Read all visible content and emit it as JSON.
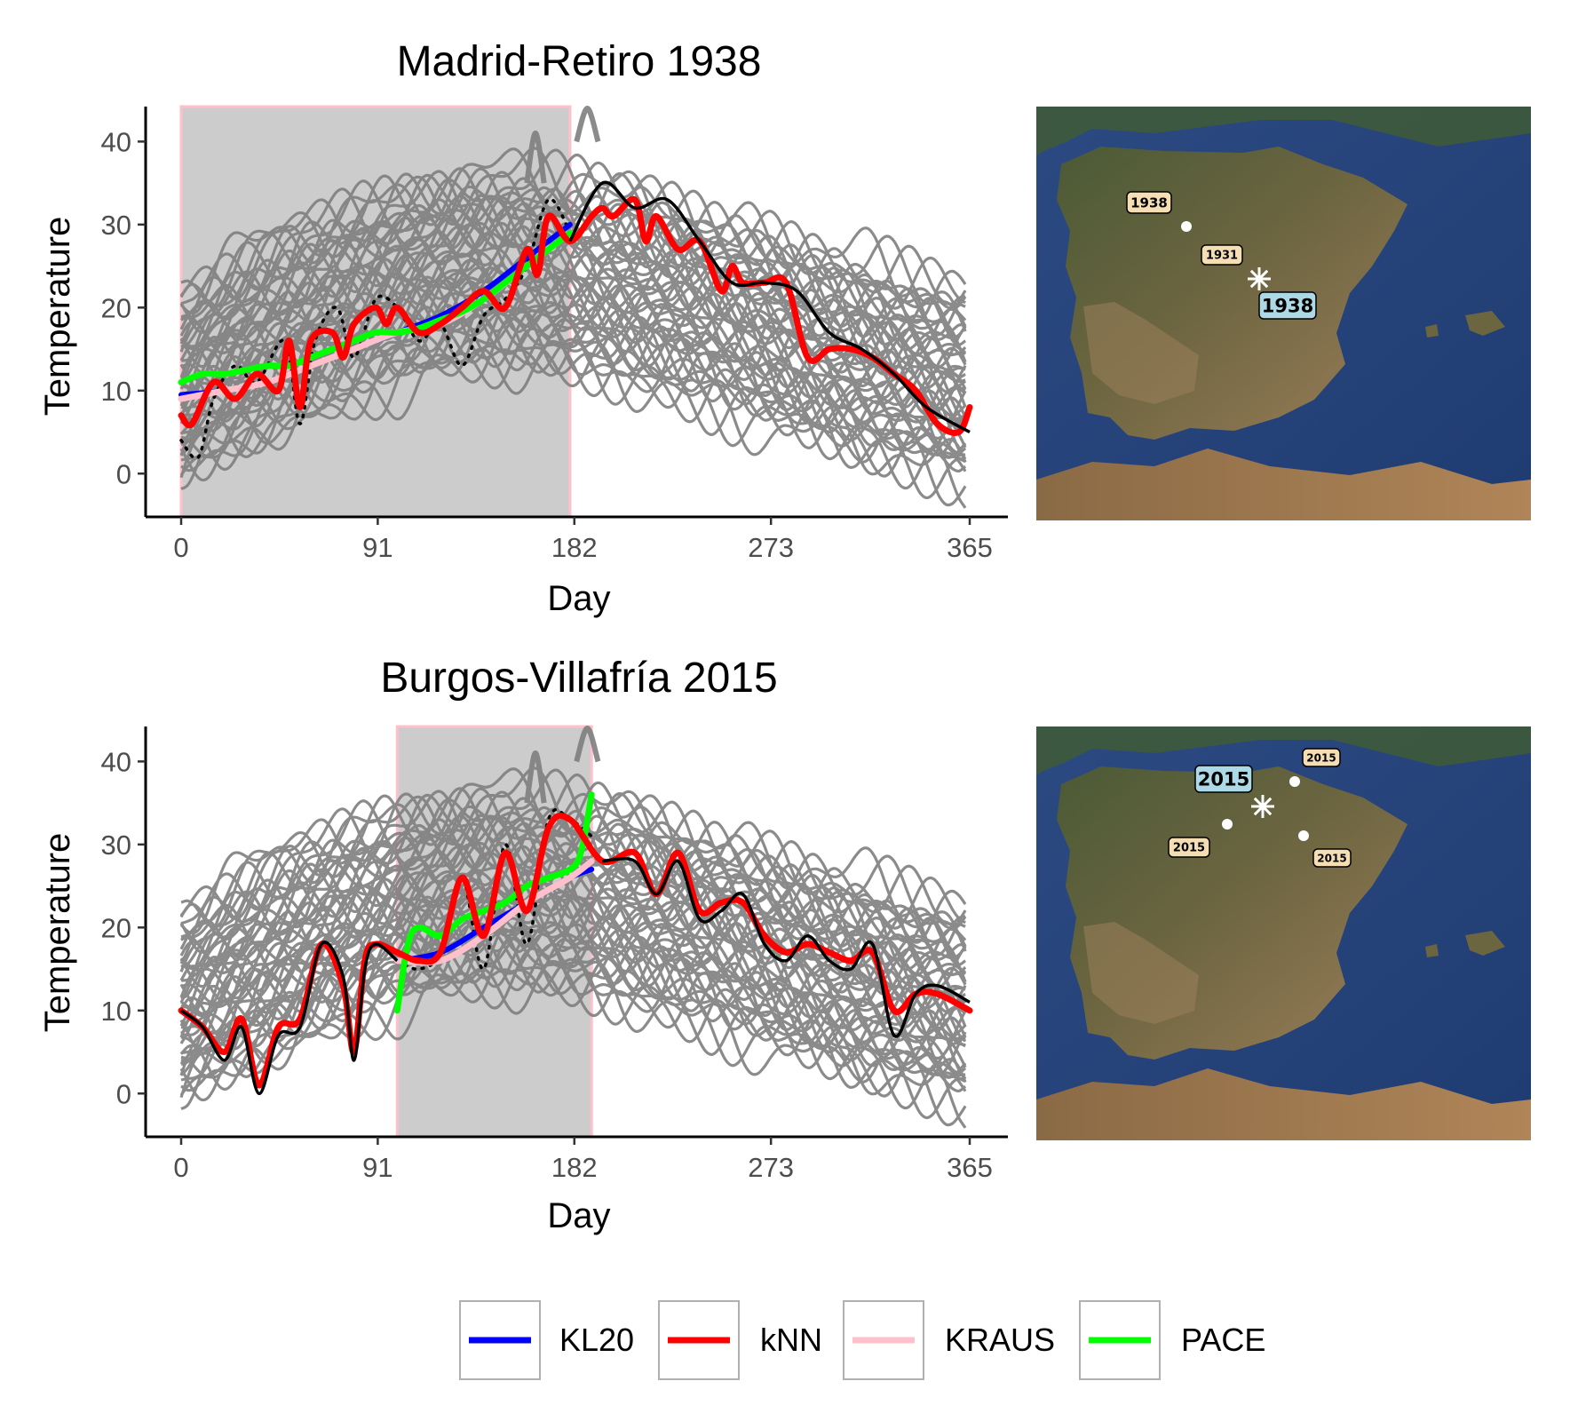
{
  "chart_data": [
    {
      "type": "line",
      "title": "Madrid-Retiro 1938",
      "xlabel": "Day",
      "ylabel": "Temperature",
      "xlim": [
        0,
        365
      ],
      "ylim": [
        -5,
        44
      ],
      "xticks": [
        0,
        91,
        182,
        273,
        365
      ],
      "yticks": [
        0,
        10,
        20,
        30,
        40
      ],
      "shaded_interval": [
        0,
        180
      ],
      "background_curves": "gray functional sample of daily temperature curves (all stations/years)",
      "observed_line": {
        "name": "observed",
        "x": [
          0,
          15,
          30,
          45,
          60,
          75,
          90,
          105,
          120,
          135,
          150,
          165,
          180,
          195,
          210,
          225,
          240,
          255,
          270,
          285,
          300,
          315,
          330,
          345,
          365
        ],
        "y": [
          8,
          9,
          11,
          12,
          15,
          16,
          18,
          18,
          19,
          20,
          22,
          25,
          28,
          35,
          32,
          33,
          28,
          23,
          23,
          22,
          17,
          15,
          12,
          8,
          5
        ]
      },
      "observed_dotted": {
        "name": "hidden observed",
        "x": [
          0,
          8,
          15,
          25,
          35,
          48,
          55,
          62,
          72,
          80,
          90,
          100,
          110,
          120,
          130,
          140,
          150,
          160,
          170,
          180
        ],
        "y": [
          4,
          2,
          9,
          13,
          11,
          16,
          6,
          16,
          20,
          14,
          21,
          20,
          16,
          18,
          13,
          19,
          21,
          25,
          33,
          29
        ]
      },
      "series": [
        {
          "name": "KL20",
          "color": "#0000ff",
          "x": [
            0,
            20,
            40,
            60,
            80,
            100,
            120,
            140,
            160,
            180
          ],
          "y": [
            9.5,
            10,
            11,
            13,
            15,
            17,
            19,
            22,
            26,
            30
          ]
        },
        {
          "name": "kNN",
          "color": "#ff0000",
          "x": [
            0,
            5,
            15,
            25,
            35,
            45,
            50,
            55,
            60,
            70,
            75,
            80,
            90,
            95,
            100,
            110,
            120,
            130,
            140,
            150,
            160,
            165,
            170,
            180,
            190,
            195,
            200,
            210,
            215,
            220,
            230,
            240,
            250,
            255,
            260,
            270,
            280,
            290,
            300,
            310,
            320,
            330,
            340,
            350,
            360,
            365
          ],
          "y": [
            7,
            6,
            11,
            9,
            12,
            10,
            16,
            8,
            16,
            17,
            14,
            18,
            20,
            18,
            20,
            17,
            18,
            20,
            22,
            20,
            27,
            24,
            31,
            28,
            31,
            32,
            31,
            33,
            28,
            31,
            27,
            28,
            22,
            25,
            23,
            23,
            23,
            14,
            15,
            15,
            14,
            12,
            10,
            6,
            5,
            8
          ]
        },
        {
          "name": "KRAUS",
          "color": "#ffc0cb",
          "x": [
            0,
            20,
            40,
            60,
            80,
            100,
            120,
            140,
            160,
            180
          ],
          "y": [
            9,
            10,
            11,
            13,
            15,
            17,
            18,
            21,
            25,
            29
          ]
        },
        {
          "name": "PACE",
          "color": "#00ff00",
          "x": [
            0,
            10,
            20,
            30,
            40,
            50,
            60,
            70,
            80,
            90,
            100,
            110,
            120,
            130,
            140,
            150,
            160,
            170,
            180
          ],
          "y": [
            11,
            12,
            12,
            12.5,
            13,
            13,
            14,
            15,
            16,
            17,
            17,
            17.5,
            18.5,
            19.5,
            21,
            23,
            25,
            27,
            29
          ]
        }
      ],
      "map": {
        "labels": [
          {
            "text": "1938",
            "style": "tan"
          },
          {
            "text": "1931",
            "style": "tan"
          },
          {
            "text": "1938",
            "style": "blue"
          }
        ]
      }
    },
    {
      "type": "line",
      "title": "Burgos-Villafría 2015",
      "xlabel": "Day",
      "ylabel": "Temperature",
      "xlim": [
        0,
        365
      ],
      "ylim": [
        -5,
        44
      ],
      "xticks": [
        0,
        91,
        182,
        273,
        365
      ],
      "yticks": [
        0,
        10,
        20,
        30,
        40
      ],
      "shaded_interval": [
        100,
        190
      ],
      "background_curves": "gray functional sample of daily temperature curves (all stations/years)",
      "observed_line": {
        "name": "observed",
        "x": [
          0,
          10,
          20,
          28,
          36,
          45,
          55,
          65,
          75,
          80,
          85,
          90,
          100,
          110,
          120,
          130,
          140,
          150,
          160,
          170,
          180,
          195,
          210,
          220,
          230,
          240,
          250,
          260,
          270,
          280,
          290,
          300,
          310,
          320,
          330,
          340,
          350,
          365
        ],
        "y": [
          10,
          8,
          4,
          8,
          0,
          7,
          8,
          18,
          14,
          4,
          15,
          18,
          16,
          16,
          18,
          26,
          18,
          29,
          20,
          31,
          32,
          28,
          28,
          24,
          28,
          21,
          22,
          24,
          18,
          16,
          19,
          16,
          15,
          18,
          7,
          12,
          13,
          11
        ]
      },
      "observed_dotted": {
        "name": "hidden observed",
        "x": [
          100,
          110,
          120,
          130,
          140,
          150,
          160,
          170,
          180,
          190
        ],
        "y": [
          16,
          15,
          17,
          26,
          15,
          30,
          18,
          33,
          33,
          31
        ]
      },
      "series": [
        {
          "name": "KL20",
          "color": "#0000ff",
          "x": [
            100,
            120,
            140,
            160,
            180,
            190
          ],
          "y": [
            16,
            17,
            20,
            23,
            26,
            27
          ]
        },
        {
          "name": "kNN",
          "color": "#ff0000",
          "x": [
            0,
            10,
            20,
            28,
            36,
            45,
            55,
            65,
            75,
            80,
            85,
            90,
            100,
            110,
            120,
            130,
            140,
            150,
            160,
            170,
            180,
            195,
            210,
            220,
            230,
            240,
            250,
            260,
            270,
            280,
            290,
            300,
            310,
            320,
            330,
            340,
            350,
            365
          ],
          "y": [
            10,
            8,
            5,
            9,
            1,
            8,
            9,
            18,
            13,
            5,
            16,
            18,
            17,
            16,
            17,
            26,
            19,
            29,
            22,
            32,
            33,
            28,
            29,
            24,
            29,
            22,
            23,
            23,
            19,
            17,
            18,
            17,
            16,
            17,
            10,
            12,
            12,
            10
          ]
        },
        {
          "name": "KRAUS",
          "color": "#ffc0cb",
          "x": [
            100,
            120,
            140,
            160,
            180,
            190
          ],
          "y": [
            16,
            16,
            19,
            23,
            26,
            28
          ]
        },
        {
          "name": "PACE",
          "color": "#00ff00",
          "x": [
            100,
            105,
            110,
            120,
            130,
            140,
            150,
            160,
            170,
            180,
            185,
            190
          ],
          "y": [
            10,
            18,
            20,
            19,
            21,
            22,
            23,
            25,
            26,
            27,
            29,
            36
          ]
        }
      ],
      "map": {
        "labels": [
          {
            "text": "2015",
            "style": "tan"
          },
          {
            "text": "2015",
            "style": "blue"
          },
          {
            "text": "2015",
            "style": "tan"
          },
          {
            "text": "2015",
            "style": "tan"
          }
        ]
      }
    }
  ],
  "legend": {
    "items": [
      {
        "label": "KL20",
        "color": "#0000ff"
      },
      {
        "label": "kNN",
        "color": "#ff0000"
      },
      {
        "label": "KRAUS",
        "color": "#ffc0cb"
      },
      {
        "label": "PACE",
        "color": "#00ff00"
      }
    ]
  }
}
